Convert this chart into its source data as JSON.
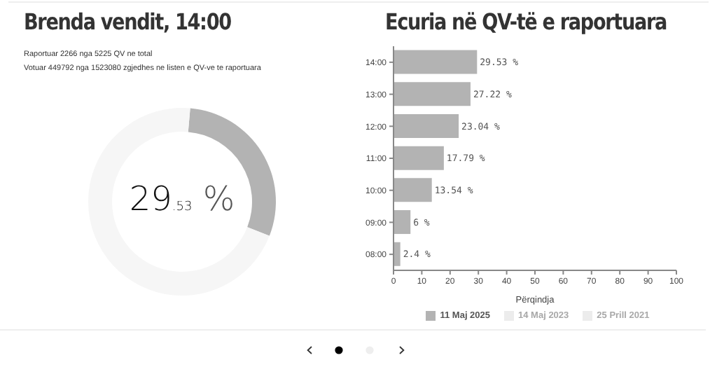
{
  "chart_data": [
    {
      "type": "donut",
      "title": "Brenda vendit, 14:00",
      "annotations": [
        "Raportuar 2266 nga 5225 QV ne total",
        "Votuar 449792 nga 1523080 zgjedhes ne listen e QV-ve te raportuara",
        "29.53 %"
      ],
      "categories": [
        null,
        null
      ],
      "values": [
        29.53,
        70.47
      ],
      "colors": [
        "#b3b3b3",
        "#f6f6f6"
      ],
      "legend": false
    },
    {
      "type": "bar",
      "title": "Ecuria në QV-të e raportuara",
      "orientation": "horizontal",
      "categories": [
        "14:00",
        "13:00",
        "12:00",
        "11:00",
        "10:00",
        "09:00",
        "08:00"
      ],
      "xlabel": "Përqindja",
      "xlim": [
        0,
        100
      ],
      "xticks": [
        0,
        10,
        20,
        30,
        40,
        50,
        60,
        70,
        80,
        90,
        100
      ],
      "series": [
        {
          "name": "11 Maj 2025",
          "color": "#b3b3b3",
          "values": [
            29.53,
            27.22,
            23.04,
            17.79,
            13.54,
            6,
            2.4
          ],
          "value_labels": [
            "29.53 %",
            "27.22 %",
            "23.04 %",
            "17.79 %",
            "13.54 %",
            "6 %",
            "2.4 %"
          ]
        },
        {
          "name": "14 Maj 2023",
          "color": "#ececec",
          "values": [
            null,
            null,
            null,
            null,
            null,
            null,
            null
          ]
        },
        {
          "name": "25 Prill 2021",
          "color": "#ececec",
          "values": [
            null,
            null,
            null,
            null,
            null,
            null,
            null
          ]
        }
      ],
      "grid": false,
      "legend": "bottom"
    }
  ]
}
